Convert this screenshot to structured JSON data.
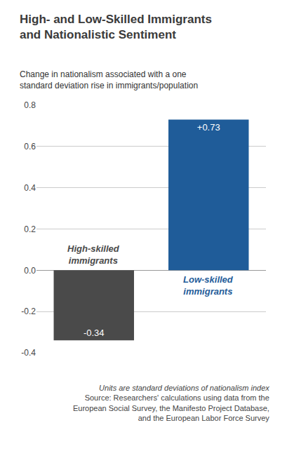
{
  "chart_data": {
    "type": "bar",
    "title": "High- and Low-Skilled Immigrants and Nationalistic Sentiment",
    "subtitle": "Change in nationalism associated with a one standard deviation rise in immigrants/population",
    "categories": [
      "High-skilled immigrants",
      "Low-skilled immigrants"
    ],
    "values": [
      -0.34,
      0.73
    ],
    "value_labels": [
      "-0.34",
      "+0.73"
    ],
    "colors": [
      "#4a4a4a",
      "#1f5c99"
    ],
    "data_labels": true,
    "ylim": [
      -0.4,
      0.8
    ],
    "yticks": [
      -0.4,
      -0.2,
      {
        "value": 0,
        "label": "0.0"
      },
      0.2,
      0.4,
      0.6,
      0.8
    ],
    "grid": true,
    "tick_labels": "y",
    "footnote": "Units are standard deviations of nationalism index",
    "source": "Source: Researchers' calculations using data from the European Social Survey, the Manifesto Project Database, and the European Labor Force Survey"
  }
}
